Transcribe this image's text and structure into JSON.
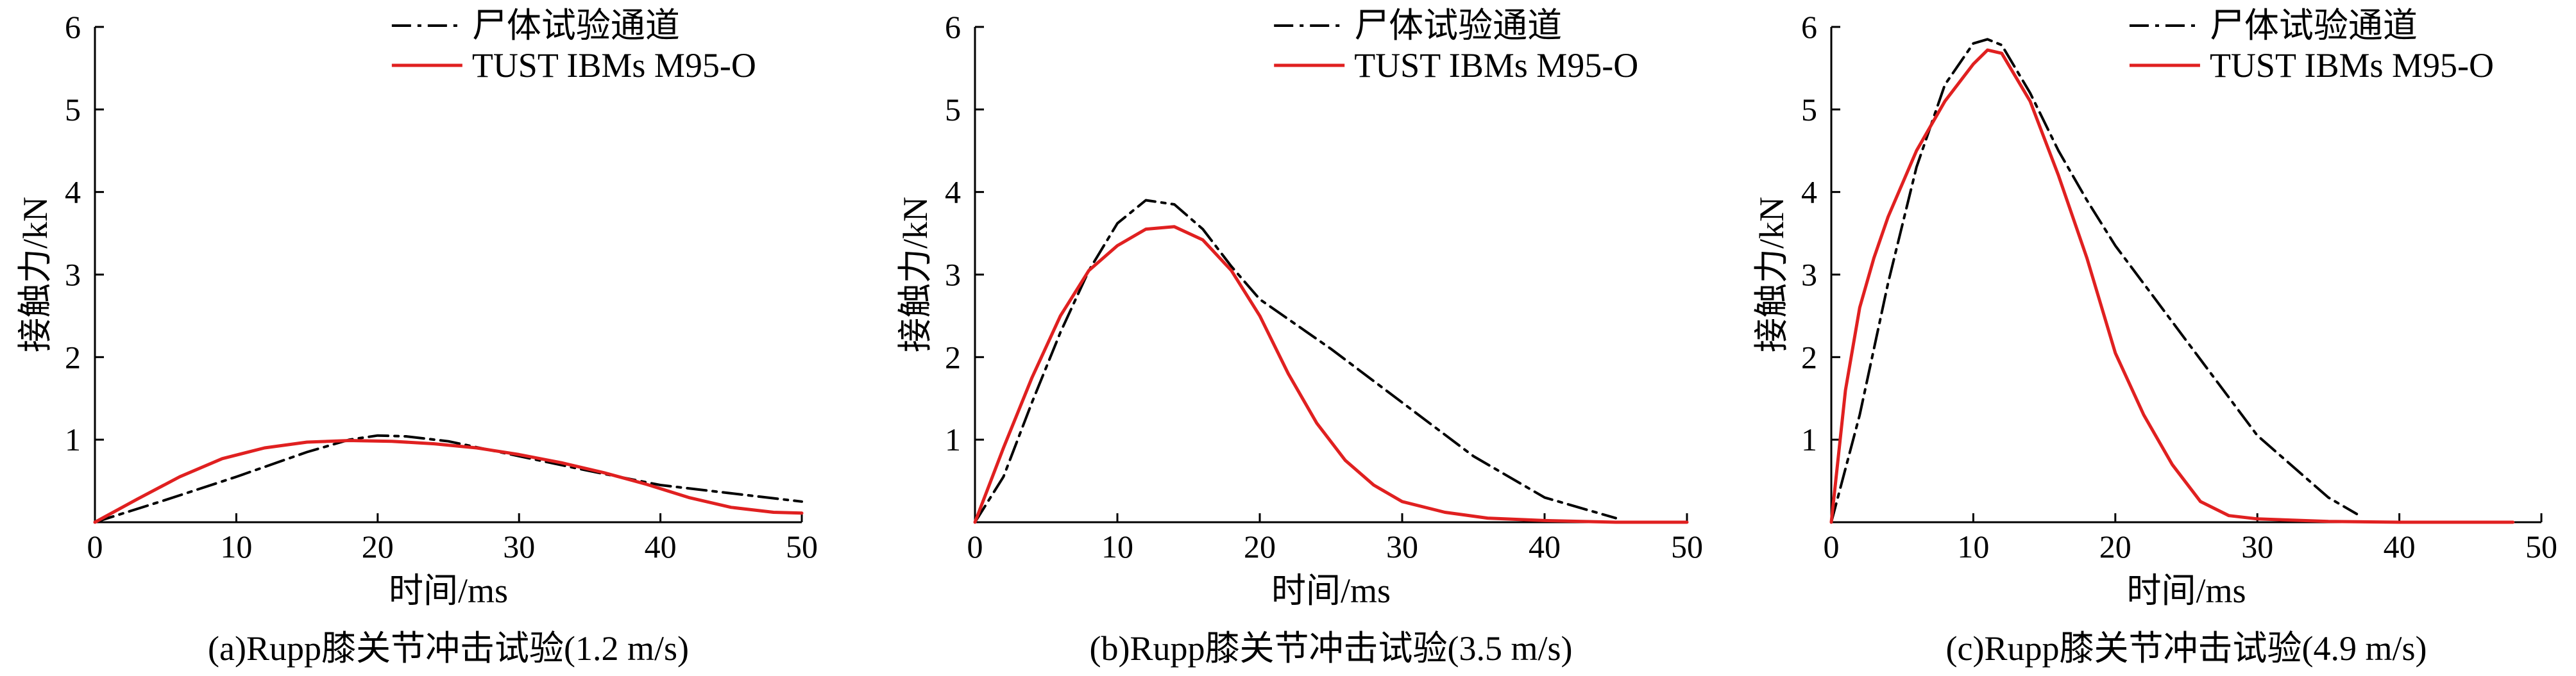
{
  "chart_data": [
    {
      "type": "line",
      "caption": "(a)Rupp膝关节冲击试验(1.2 m/s)",
      "xlabel": "时间/ms",
      "ylabel": "接触力/kN",
      "xlim": [
        0,
        50
      ],
      "ylim": [
        0,
        6
      ],
      "xticks": [
        "0",
        "10",
        "20",
        "30",
        "40",
        "50"
      ],
      "yticks": [
        "1",
        "2",
        "3",
        "4",
        "5",
        "6"
      ],
      "legend_position": "top-right",
      "series": [
        {
          "name": "尸体试验通道",
          "style": "dashdot",
          "color": "#000000",
          "x": [
            0,
            5,
            10,
            15,
            18,
            20,
            22,
            25,
            30,
            35,
            40,
            45,
            50
          ],
          "y": [
            0,
            0.27,
            0.55,
            0.85,
            1.0,
            1.05,
            1.04,
            0.98,
            0.8,
            0.62,
            0.45,
            0.35,
            0.25
          ]
        },
        {
          "name": "TUST IBMs M95-O",
          "style": "solid",
          "color": "#e02020",
          "x": [
            0,
            3,
            6,
            9,
            12,
            15,
            18,
            21,
            24,
            27,
            30,
            33,
            36,
            39,
            42,
            45,
            48,
            50
          ],
          "y": [
            0,
            0.28,
            0.55,
            0.77,
            0.9,
            0.97,
            0.99,
            0.98,
            0.95,
            0.9,
            0.82,
            0.72,
            0.6,
            0.46,
            0.3,
            0.18,
            0.12,
            0.11
          ]
        }
      ]
    },
    {
      "type": "line",
      "caption": "(b)Rupp膝关节冲击试验(3.5 m/s)",
      "xlabel": "时间/ms",
      "ylabel": "接触力/kN",
      "xlim": [
        0,
        50
      ],
      "ylim": [
        0,
        6
      ],
      "xticks": [
        "0",
        "10",
        "20",
        "30",
        "40",
        "50"
      ],
      "yticks": [
        "1",
        "2",
        "3",
        "4",
        "5",
        "6"
      ],
      "legend_position": "top-right",
      "series": [
        {
          "name": "尸体试验通道",
          "style": "dashdot",
          "color": "#000000",
          "x": [
            0,
            2,
            4,
            6,
            8,
            10,
            12,
            14,
            16,
            18,
            20,
            25,
            30,
            35,
            40,
            45
          ],
          "y": [
            0,
            0.55,
            1.45,
            2.3,
            3.05,
            3.62,
            3.9,
            3.85,
            3.55,
            3.1,
            2.7,
            2.1,
            1.45,
            0.8,
            0.3,
            0.05
          ]
        },
        {
          "name": "TUST IBMs M95-O",
          "style": "solid",
          "color": "#e02020",
          "x": [
            0,
            2,
            4,
            6,
            8,
            10,
            12,
            14,
            16,
            18,
            20,
            22,
            24,
            26,
            28,
            30,
            33,
            36,
            40,
            45,
            50
          ],
          "y": [
            0,
            0.9,
            1.75,
            2.5,
            3.05,
            3.35,
            3.55,
            3.58,
            3.42,
            3.05,
            2.5,
            1.8,
            1.2,
            0.75,
            0.45,
            0.25,
            0.12,
            0.05,
            0.02,
            0,
            0
          ]
        }
      ]
    },
    {
      "type": "line",
      "caption": "(c)Rupp膝关节冲击试验(4.9 m/s)",
      "xlabel": "时间/ms",
      "ylabel": "接触力/kN",
      "xlim": [
        0,
        50
      ],
      "ylim": [
        0,
        6
      ],
      "xticks": [
        "0",
        "10",
        "20",
        "30",
        "40",
        "50"
      ],
      "yticks": [
        "1",
        "2",
        "3",
        "4",
        "5",
        "6"
      ],
      "legend_position": "top-right",
      "series": [
        {
          "name": "尸体试验通道",
          "style": "dashdot",
          "color": "#000000",
          "x": [
            0,
            2,
            4,
            6,
            8,
            10,
            11,
            12,
            14,
            16,
            18,
            20,
            25,
            30,
            35,
            37
          ],
          "y": [
            0,
            1.3,
            2.9,
            4.3,
            5.3,
            5.8,
            5.85,
            5.78,
            5.2,
            4.5,
            3.9,
            3.35,
            2.2,
            1.05,
            0.3,
            0.1
          ]
        },
        {
          "name": "TUST IBMs M95-O",
          "style": "solid",
          "color": "#e02020",
          "x": [
            0,
            1,
            2,
            3,
            4,
            6,
            8,
            10,
            11,
            12,
            14,
            16,
            18,
            20,
            22,
            24,
            26,
            28,
            30,
            35,
            40,
            48
          ],
          "y": [
            0,
            1.6,
            2.6,
            3.2,
            3.7,
            4.5,
            5.1,
            5.55,
            5.72,
            5.68,
            5.1,
            4.2,
            3.2,
            2.05,
            1.3,
            0.7,
            0.25,
            0.08,
            0.04,
            0.01,
            0,
            0
          ]
        }
      ]
    }
  ]
}
